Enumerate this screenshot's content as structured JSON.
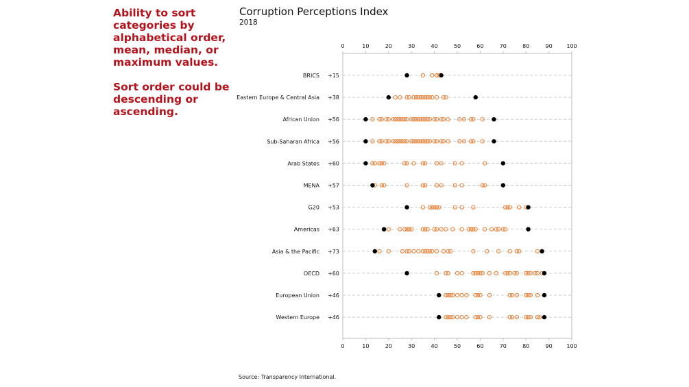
{
  "annotation": {
    "paragraphs": [
      "Ability to sort categories by alphabetical order, mean, median, or maximum values.",
      "Sort order could be descending or ascending."
    ],
    "color": "#b5121b"
  },
  "source": "Source: Transparency International.",
  "colors": {
    "country": "#e8833a",
    "extreme": "#000000",
    "grid": "#cccccc",
    "axis": "#bbbbbb"
  },
  "chart_data": {
    "type": "scatter",
    "subtype": "dot-plot",
    "title": "Corruption Perceptions Index",
    "subtitle": "2018",
    "xlabel": "",
    "ylabel": "",
    "xlim": [
      0,
      100
    ],
    "xticks": [
      0,
      10,
      20,
      30,
      40,
      50,
      60,
      70,
      80,
      90,
      100
    ],
    "xaxis_position": "top-and-bottom",
    "grid": "horizontal dashed",
    "legend": "none",
    "categories": [
      {
        "name": "BRICS",
        "range_label": "+15",
        "min": 28,
        "max": 43,
        "values": [
          35,
          39,
          41,
          42
        ]
      },
      {
        "name": "Eastern Europe & Central Asia",
        "range_label": "+38",
        "min": 20,
        "max": 58,
        "values": [
          23,
          25,
          28,
          29,
          31,
          32,
          33,
          34,
          35,
          36,
          37,
          38,
          39,
          41,
          44,
          45
        ]
      },
      {
        "name": "African Union",
        "range_label": "+56",
        "min": 10,
        "max": 66,
        "values": [
          13,
          16,
          17,
          19,
          20,
          22,
          23,
          24,
          25,
          26,
          27,
          28,
          30,
          31,
          32,
          33,
          34,
          35,
          36,
          37,
          38,
          40,
          41,
          43,
          44,
          46,
          51,
          53,
          56,
          57,
          61
        ]
      },
      {
        "name": "Sub-Saharan Africa",
        "range_label": "+56",
        "min": 10,
        "max": 66,
        "values": [
          13,
          16,
          17,
          19,
          20,
          22,
          23,
          24,
          25,
          26,
          27,
          28,
          30,
          31,
          32,
          33,
          34,
          35,
          36,
          37,
          38,
          40,
          41,
          43,
          44,
          46,
          51,
          53,
          56,
          57,
          61
        ]
      },
      {
        "name": "Arab States",
        "range_label": "+60",
        "min": 10,
        "max": 70,
        "values": [
          13,
          14,
          16,
          17,
          18,
          27,
          28,
          31,
          35,
          36,
          41,
          43,
          49,
          52,
          62
        ]
      },
      {
        "name": "MENA",
        "range_label": "+57",
        "min": 13,
        "max": 70,
        "values": [
          14,
          17,
          18,
          28,
          35,
          36,
          41,
          43,
          49,
          52,
          61,
          62
        ]
      },
      {
        "name": "G20",
        "range_label": "+53",
        "min": 28,
        "max": 81,
        "values": [
          35,
          38,
          39,
          40,
          41,
          42,
          49,
          52,
          57,
          71,
          72,
          73,
          77,
          80
        ]
      },
      {
        "name": "Americas",
        "range_label": "+63",
        "min": 18,
        "max": 81,
        "values": [
          20,
          25,
          27,
          28,
          29,
          30,
          35,
          36,
          37,
          40,
          41,
          43,
          45,
          48,
          52,
          55,
          56,
          57,
          58,
          62,
          65,
          67,
          68,
          70,
          71
        ]
      },
      {
        "name": "Asia & the Pacific",
        "range_label": "+73",
        "min": 14,
        "max": 87,
        "values": [
          16,
          20,
          26,
          28,
          29,
          31,
          33,
          35,
          36,
          37,
          38,
          39,
          41,
          44,
          46,
          47,
          57,
          63,
          68,
          73,
          76,
          77,
          85
        ]
      },
      {
        "name": "OECD",
        "range_label": "+60",
        "min": 28,
        "max": 88,
        "values": [
          41,
          45,
          46,
          50,
          52,
          57,
          58,
          59,
          60,
          61,
          64,
          67,
          71,
          72,
          73,
          75,
          76,
          80,
          81,
          82,
          84,
          85,
          87
        ]
      },
      {
        "name": "European Union",
        "range_label": "+46",
        "min": 42,
        "max": 88,
        "values": [
          45,
          46,
          47,
          48,
          50,
          52,
          54,
          58,
          59,
          60,
          64,
          73,
          74,
          76,
          80,
          81,
          82,
          85
        ]
      },
      {
        "name": "Western Europe",
        "range_label": "+46",
        "min": 42,
        "max": 88,
        "values": [
          45,
          46,
          47,
          48,
          50,
          52,
          54,
          58,
          59,
          60,
          64,
          73,
          74,
          76,
          80,
          81,
          82,
          85,
          86
        ]
      }
    ]
  }
}
